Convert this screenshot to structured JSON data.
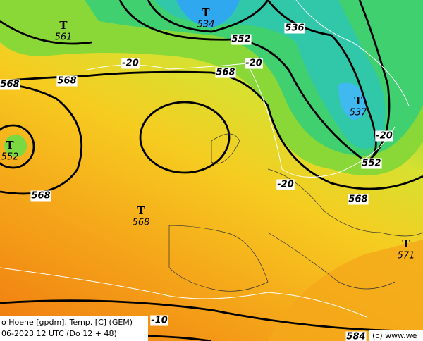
{
  "lows": [
    {
      "symbol": "T",
      "value": 561
    },
    {
      "symbol": "T",
      "value": 534
    },
    {
      "symbol": "T",
      "value": 537
    },
    {
      "symbol": "T",
      "value": 552
    },
    {
      "symbol": "T",
      "value": 568
    },
    {
      "symbol": "T",
      "value": 571
    }
  ],
  "contour_labels": [
    568,
    568,
    568,
    568,
    568,
    552,
    552,
    536,
    -20,
    -20,
    -20,
    -20,
    -10,
    584
  ],
  "footer": {
    "line1": "o Hoehe [gpdm], Temp. [C] (GEM)",
    "line2": "06-2023 12 UTC (Do 12 + 48)",
    "credit": "(c) www.we"
  }
}
